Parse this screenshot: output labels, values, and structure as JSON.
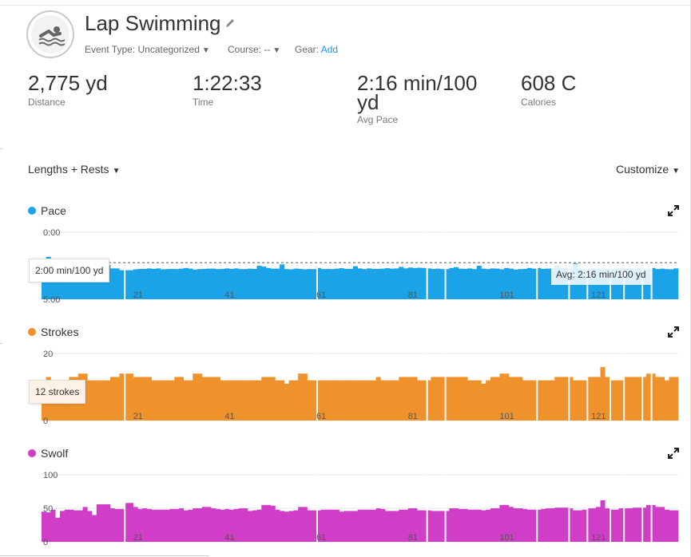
{
  "activity": {
    "title": "Lap Swimming",
    "icon": "swimmer-icon",
    "event_type_label": "Event Type: Uncategorized",
    "course_label": "Course: --",
    "gear_label": "Gear:",
    "gear_action": "Add"
  },
  "stats": [
    {
      "value": "2,775 yd",
      "label": "Distance"
    },
    {
      "value": "1:22:33",
      "label": "Time"
    },
    {
      "value": "2:16 min/100 yd",
      "label": "Avg Pace"
    },
    {
      "value": "608 C",
      "label": "Calories"
    }
  ],
  "toolbar": {
    "view_selector": "Lengths + Rests",
    "customize_label": "Customize"
  },
  "colors": {
    "pace": "#1aa3e6",
    "strokes": "#f0922b",
    "swolf": "#d03ec8",
    "link": "#1a9ae0"
  },
  "chart_data": [
    {
      "type": "bar",
      "title": "Pace",
      "y_ticks": [
        "0:00",
        "5:00"
      ],
      "y_reversed": true,
      "ylim": [
        0,
        300
      ],
      "x_ticks": [
        21,
        41,
        61,
        81,
        101,
        121
      ],
      "reference_label": "2:00 min/100 yd",
      "avg_label": "Avg: 2:16 min/100 yd",
      "avg_value": 136,
      "values": [
        172,
        110,
        146,
        146,
        148,
        133,
        132,
        130,
        150,
        150,
        160,
        172,
        148,
        140,
        146,
        162,
        162,
        170,
        170,
        170,
        166,
        164,
        164,
        162,
        164,
        162,
        166,
        165,
        164,
        165,
        163,
        160,
        163,
        167,
        165,
        164,
        163,
        163,
        165,
        164,
        162,
        164,
        162,
        165,
        165,
        163,
        164,
        150,
        154,
        160,
        163,
        163,
        144,
        165,
        166,
        163,
        164,
        166,
        165,
        165,
        160,
        165,
        164,
        165,
        163,
        161,
        164,
        164,
        152,
        162,
        165,
        162,
        164,
        164,
        163,
        161,
        163,
        162,
        155,
        162,
        158,
        160,
        159,
        160,
        162,
        164,
        163,
        165,
        165,
        160,
        156,
        163,
        164,
        162,
        165,
        150,
        163,
        165,
        162,
        163,
        166,
        160,
        163,
        167,
        165,
        164,
        160,
        163,
        160,
        164,
        163,
        162,
        150,
        160,
        163,
        162,
        140,
        163,
        165,
        166,
        162,
        163,
        168,
        165,
        164,
        163,
        163,
        164,
        162,
        164,
        160,
        165,
        163,
        160,
        165,
        163,
        165,
        166,
        162
      ]
    },
    {
      "type": "bar",
      "title": "Strokes",
      "y_ticks": [
        "20",
        "0"
      ],
      "ylim": [
        0,
        20
      ],
      "x_ticks": [
        21,
        41,
        61,
        81,
        101,
        121
      ],
      "reference_label": "12 strokes",
      "values": [
        12,
        13,
        8,
        12,
        11,
        12,
        13,
        13,
        14,
        14,
        12,
        12,
        12,
        12,
        12,
        13,
        13,
        14,
        14,
        14,
        13,
        13,
        13,
        13,
        12,
        12,
        12,
        12,
        12,
        13,
        13,
        12,
        12,
        14,
        14,
        13,
        13,
        13,
        13,
        12,
        12,
        12,
        12,
        12,
        12,
        12,
        12,
        12,
        13,
        13,
        13,
        12,
        12,
        11,
        12,
        12,
        14,
        14,
        12,
        12,
        12,
        12,
        12,
        12,
        12,
        12,
        12,
        12,
        12,
        12,
        12,
        12,
        12,
        13,
        12,
        12,
        12,
        12,
        13,
        13,
        13,
        13,
        12,
        12,
        12,
        13,
        13,
        13,
        13,
        13,
        13,
        13,
        13,
        12,
        12,
        12,
        11,
        12,
        13,
        13,
        14,
        14,
        13,
        13,
        13,
        12,
        12,
        12,
        12,
        12,
        12,
        12,
        13,
        13,
        13,
        13,
        12,
        12,
        12,
        13,
        13,
        13,
        16,
        13,
        12,
        12,
        12,
        13,
        13,
        13,
        13,
        13,
        14,
        14,
        13,
        13,
        12,
        13,
        13
      ]
    },
    {
      "type": "bar",
      "title": "Swolf",
      "y_ticks": [
        "100",
        "50",
        "0"
      ],
      "ylim": [
        0,
        100
      ],
      "x_ticks": [
        21,
        41,
        61,
        81,
        101,
        121
      ],
      "values": [
        45,
        44,
        48,
        36,
        46,
        48,
        48,
        47,
        47,
        52,
        46,
        40,
        56,
        56,
        56,
        50,
        49,
        49,
        58,
        58,
        52,
        49,
        50,
        49,
        48,
        48,
        48,
        48,
        49,
        49,
        50,
        47,
        48,
        50,
        50,
        52,
        52,
        50,
        49,
        48,
        49,
        48,
        49,
        50,
        50,
        46,
        47,
        48,
        55,
        55,
        54,
        48,
        46,
        45,
        46,
        47,
        52,
        52,
        47,
        47,
        47,
        48,
        48,
        48,
        48,
        45,
        46,
        46,
        46,
        48,
        48,
        48,
        48,
        50,
        49,
        46,
        46,
        46,
        48,
        48,
        50,
        50,
        47,
        47,
        47,
        46,
        46,
        46,
        46,
        50,
        50,
        49,
        49,
        48,
        48,
        48,
        47,
        48,
        50,
        50,
        55,
        55,
        52,
        50,
        50,
        49,
        48,
        48,
        48,
        49,
        50,
        50,
        51,
        51,
        51,
        50,
        47,
        47,
        48,
        50,
        50,
        52,
        62,
        50,
        48,
        48,
        50,
        50,
        50,
        51,
        51,
        51,
        55,
        55,
        52,
        52,
        48,
        47,
        47
      ]
    }
  ]
}
